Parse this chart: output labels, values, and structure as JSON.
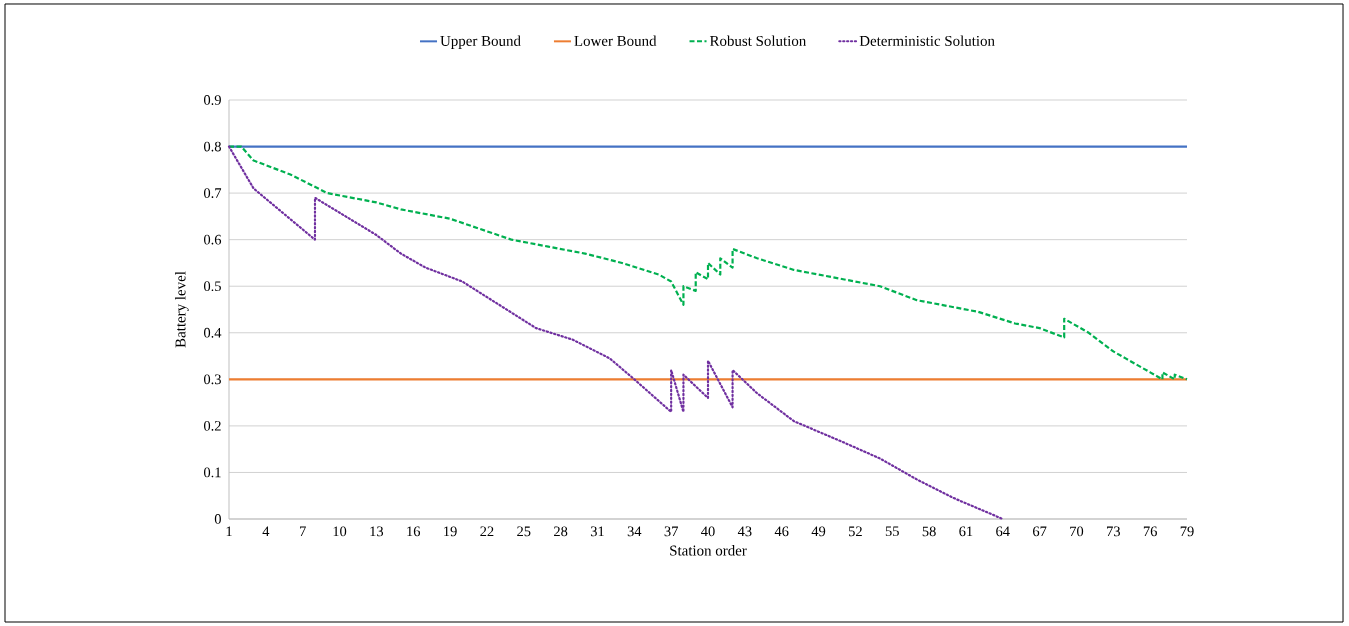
{
  "chart_data": {
    "type": "line",
    "xlabel": "Station order",
    "ylabel": "Battery level",
    "xlim": [
      1,
      79
    ],
    "xticks": [
      1,
      4,
      7,
      10,
      13,
      16,
      19,
      22,
      25,
      28,
      31,
      34,
      37,
      40,
      43,
      46,
      49,
      52,
      55,
      58,
      61,
      64,
      67,
      70,
      73,
      76,
      79
    ],
    "ylim": [
      0,
      0.9
    ],
    "yticks": [
      0,
      0.1,
      0.2,
      0.3,
      0.4,
      0.5,
      0.6,
      0.7,
      0.8,
      0.9
    ],
    "grid": "y",
    "legend": "top",
    "marker": "none",
    "series": [
      {
        "name": "Upper Bound",
        "color": "#4472c4",
        "line_style": "solid",
        "x": [
          1,
          79
        ],
        "values": [
          0.8,
          0.8
        ]
      },
      {
        "name": "Lower Bound",
        "color": "#ed7d31",
        "line_style": "solid",
        "x": [
          1,
          79
        ],
        "values": [
          0.3,
          0.3
        ]
      },
      {
        "name": "Robust Solution",
        "color": "#00b050",
        "line_style": "dashed",
        "x": [
          1,
          2,
          3,
          6,
          9,
          12,
          13,
          15,
          19,
          24,
          27,
          30,
          33,
          36,
          37,
          38,
          38,
          39,
          39,
          40,
          40,
          41,
          41,
          42,
          42,
          44,
          47,
          51,
          54,
          57,
          62,
          65,
          67,
          69,
          69,
          71,
          73,
          74,
          76,
          77,
          77,
          78,
          78,
          79
        ],
        "values": [
          0.8,
          0.8,
          0.77,
          0.74,
          0.7,
          0.685,
          0.68,
          0.665,
          0.645,
          0.6,
          0.585,
          0.57,
          0.55,
          0.525,
          0.51,
          0.46,
          0.5,
          0.49,
          0.53,
          0.515,
          0.55,
          0.525,
          0.56,
          0.54,
          0.58,
          0.56,
          0.535,
          0.515,
          0.5,
          0.47,
          0.445,
          0.42,
          0.41,
          0.39,
          0.43,
          0.4,
          0.36,
          0.345,
          0.315,
          0.3,
          0.315,
          0.3,
          0.31,
          0.3
        ]
      },
      {
        "name": "Deterministic Solution",
        "color": "#7030a0",
        "line_style": "dotted",
        "x": [
          1,
          3,
          8,
          8,
          13,
          15,
          17,
          20,
          23,
          26,
          29,
          32,
          34,
          37,
          37,
          38,
          38,
          40,
          40,
          42,
          42,
          44,
          47,
          51,
          54,
          57,
          60,
          64
        ],
        "values": [
          0.8,
          0.71,
          0.6,
          0.69,
          0.61,
          0.57,
          0.54,
          0.51,
          0.46,
          0.41,
          0.385,
          0.345,
          0.3,
          0.23,
          0.32,
          0.23,
          0.31,
          0.26,
          0.34,
          0.24,
          0.32,
          0.27,
          0.21,
          0.165,
          0.13,
          0.085,
          0.045,
          0
        ]
      }
    ]
  }
}
